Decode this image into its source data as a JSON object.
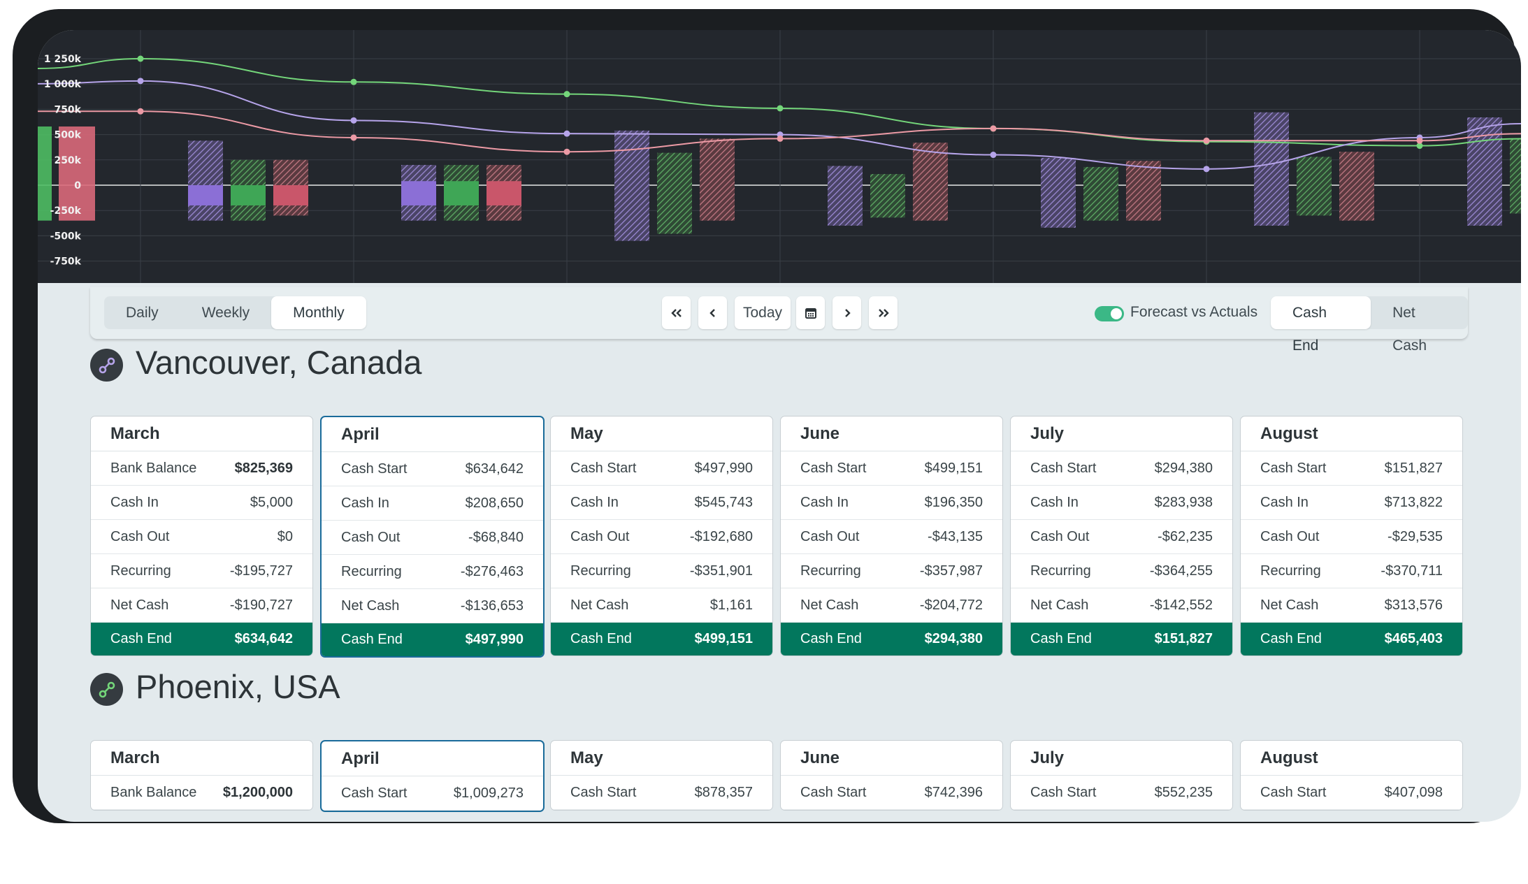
{
  "chart_data": {
    "type": "bar+line",
    "y_ticks": [
      "1 250k",
      "1 000k",
      "750k",
      "500k",
      "250k",
      "0",
      "-250k",
      "-500k",
      "-750k"
    ],
    "ylim": [
      -1000,
      1250
    ],
    "series_colors": {
      "a": "#b6a4ea",
      "b": "#74d67a",
      "c": "#ec9aa5"
    },
    "lines": [
      {
        "name": "green",
        "color": "#74d67a",
        "values": [
          1250,
          1020,
          900,
          760,
          560,
          430,
          390
        ]
      },
      {
        "name": "purple",
        "color": "#b6a4ea",
        "values": [
          1030,
          640,
          510,
          500,
          300,
          160,
          470
        ]
      },
      {
        "name": "pink",
        "color": "#ec9aa5",
        "values": [
          730,
          470,
          330,
          460,
          560,
          440,
          440
        ]
      }
    ],
    "bars": [
      {
        "month": 0,
        "series": [
          {
            "color": "#74d67a",
            "min": -350,
            "max": 580,
            "solid_min": -350,
            "solid_max": 580
          },
          {
            "color": "#ec9aa5",
            "min": -350,
            "max": 580,
            "solid_min": -350,
            "solid_max": 580
          }
        ]
      },
      {
        "month": 1,
        "series": [
          {
            "color": "#b6a4ea",
            "min": -350,
            "max": 440,
            "solid_min": -200,
            "solid_max": 0
          },
          {
            "color": "#74d67a",
            "min": -350,
            "max": 250,
            "solid_min": -200,
            "solid_max": 0
          },
          {
            "color": "#ec9aa5",
            "min": -300,
            "max": 250,
            "solid_min": -200,
            "solid_max": 0
          }
        ]
      },
      {
        "month": 2,
        "series": [
          {
            "color": "#b6a4ea",
            "min": -350,
            "max": 200,
            "solid_min": -200,
            "solid_max": 40
          },
          {
            "color": "#74d67a",
            "min": -350,
            "max": 200,
            "solid_min": -200,
            "solid_max": 40
          },
          {
            "color": "#ec9aa5",
            "min": -350,
            "max": 200,
            "solid_min": -200,
            "solid_max": 40
          }
        ]
      },
      {
        "month": 3,
        "series": [
          {
            "color": "#b6a4ea",
            "min": -550,
            "max": 540
          },
          {
            "color": "#74d67a",
            "min": -480,
            "max": 320
          },
          {
            "color": "#ec9aa5",
            "min": -350,
            "max": 460
          }
        ]
      },
      {
        "month": 4,
        "series": [
          {
            "color": "#b6a4ea",
            "min": -400,
            "max": 190
          },
          {
            "color": "#74d67a",
            "min": -320,
            "max": 110
          },
          {
            "color": "#ec9aa5",
            "min": -350,
            "max": 420
          }
        ]
      },
      {
        "month": 5,
        "series": [
          {
            "color": "#b6a4ea",
            "min": -420,
            "max": 270
          },
          {
            "color": "#74d67a",
            "min": -350,
            "max": 180
          },
          {
            "color": "#ec9aa5",
            "min": -350,
            "max": 240
          }
        ]
      },
      {
        "month": 6,
        "series": [
          {
            "color": "#b6a4ea",
            "min": -400,
            "max": 720
          },
          {
            "color": "#74d67a",
            "min": -300,
            "max": 280
          },
          {
            "color": "#ec9aa5",
            "min": -350,
            "max": 330
          }
        ]
      },
      {
        "month": 7,
        "series": [
          {
            "color": "#b6a4ea",
            "min": -400,
            "max": 670
          },
          {
            "color": "#74d67a",
            "min": -280,
            "max": 460
          }
        ]
      }
    ]
  },
  "toolbar": {
    "periods": [
      "Daily",
      "Weekly",
      "Monthly"
    ],
    "active_period": "Monthly",
    "today_label": "Today",
    "toggle_label": "Forecast vs Actuals",
    "view_modes": [
      "Cash End",
      "Net Cash"
    ],
    "active_view": "Cash End"
  },
  "locations": [
    {
      "name": "Vancouver, Canada",
      "icon_color": "#b6a4ea",
      "months": [
        {
          "month": "March",
          "rows": [
            [
              "Bank Balance",
              "$825,369",
              true
            ],
            [
              "Cash In",
              "$5,000"
            ],
            [
              "Cash Out",
              "$0"
            ],
            [
              "Recurring",
              "-$195,727"
            ],
            [
              "Net Cash",
              "-$190,727"
            ]
          ],
          "end": [
            "Cash End",
            "$634,642"
          ]
        },
        {
          "month": "April",
          "rows": [
            [
              "Cash Start",
              "$634,642"
            ],
            [
              "Cash In",
              "$208,650"
            ],
            [
              "Cash Out",
              "-$68,840"
            ],
            [
              "Recurring",
              "-$276,463"
            ],
            [
              "Net Cash",
              "-$136,653"
            ]
          ],
          "end": [
            "Cash End",
            "$497,990"
          ]
        },
        {
          "month": "May",
          "rows": [
            [
              "Cash Start",
              "$497,990"
            ],
            [
              "Cash In",
              "$545,743"
            ],
            [
              "Cash Out",
              "-$192,680"
            ],
            [
              "Recurring",
              "-$351,901"
            ],
            [
              "Net Cash",
              "$1,161"
            ]
          ],
          "end": [
            "Cash End",
            "$499,151"
          ]
        },
        {
          "month": "June",
          "rows": [
            [
              "Cash Start",
              "$499,151"
            ],
            [
              "Cash In",
              "$196,350"
            ],
            [
              "Cash Out",
              "-$43,135"
            ],
            [
              "Recurring",
              "-$357,987"
            ],
            [
              "Net Cash",
              "-$204,772"
            ]
          ],
          "end": [
            "Cash End",
            "$294,380"
          ]
        },
        {
          "month": "July",
          "rows": [
            [
              "Cash Start",
              "$294,380"
            ],
            [
              "Cash In",
              "$283,938"
            ],
            [
              "Cash Out",
              "-$62,235"
            ],
            [
              "Recurring",
              "-$364,255"
            ],
            [
              "Net Cash",
              "-$142,552"
            ]
          ],
          "end": [
            "Cash End",
            "$151,827"
          ]
        },
        {
          "month": "August",
          "rows": [
            [
              "Cash Start",
              "$151,827"
            ],
            [
              "Cash In",
              "$713,822"
            ],
            [
              "Cash Out",
              "-$29,535"
            ],
            [
              "Recurring",
              "-$370,711"
            ],
            [
              "Net Cash",
              "$313,576"
            ]
          ],
          "end": [
            "Cash End",
            "$465,403"
          ]
        }
      ]
    },
    {
      "name": "Phoenix, USA",
      "icon_color": "#74d67a",
      "months": [
        {
          "month": "March",
          "rows": [
            [
              "Bank Balance",
              "$1,200,000",
              true
            ]
          ]
        },
        {
          "month": "April",
          "rows": [
            [
              "Cash Start",
              "$1,009,273"
            ]
          ]
        },
        {
          "month": "May",
          "rows": [
            [
              "Cash Start",
              "$878,357"
            ]
          ]
        },
        {
          "month": "June",
          "rows": [
            [
              "Cash Start",
              "$742,396"
            ]
          ]
        },
        {
          "month": "July",
          "rows": [
            [
              "Cash Start",
              "$552,235"
            ]
          ]
        },
        {
          "month": "August",
          "rows": [
            [
              "Cash Start",
              "$407,098"
            ]
          ]
        }
      ]
    }
  ]
}
